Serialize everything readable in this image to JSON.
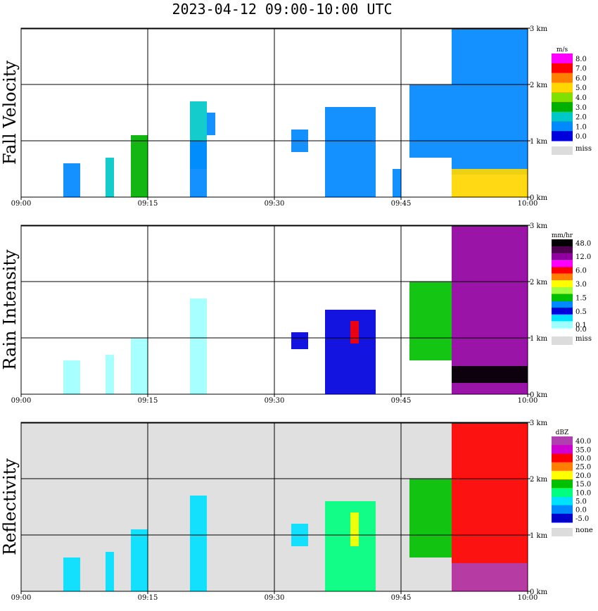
{
  "title": "2023-04-12   09:00-10:00 UTC",
  "time_ticks": [
    "09:00",
    "09:15",
    "09:30",
    "09:45",
    "10:00"
  ],
  "height_ticks": [
    "0 km",
    "1 km",
    "2 km",
    "3 km"
  ],
  "panels": [
    {
      "id": "fall",
      "title": "Fall Velocity",
      "units": "m/s",
      "background": "#ffffff",
      "legend": [
        {
          "label": "8.0",
          "color": "#ff00ff"
        },
        {
          "label": "7.0",
          "color": "#ff0000"
        },
        {
          "label": "6.0",
          "color": "#ff7f00"
        },
        {
          "label": "5.0",
          "color": "#ffd700"
        },
        {
          "label": "4.0",
          "color": "#80e000"
        },
        {
          "label": "3.0",
          "color": "#00b000"
        },
        {
          "label": "2.0",
          "color": "#00c8c8"
        },
        {
          "label": "1.0",
          "color": "#0088ff"
        },
        {
          "label": "0.0",
          "color": "#0000dd"
        }
      ],
      "legend_extra": "",
      "miss_label": "miss"
    },
    {
      "id": "rain",
      "title": "Rain Intensity",
      "units": "mm/hr",
      "background": "#ffffff",
      "legend": [
        {
          "label": "48.0",
          "color": "#000000"
        },
        {
          "label": "",
          "color": "#500050"
        },
        {
          "label": "12.0",
          "color": "#9000a0"
        },
        {
          "label": "",
          "color": "#ff00ff"
        },
        {
          "label": "6.0",
          "color": "#ff0000"
        },
        {
          "label": "",
          "color": "#ff7f00"
        },
        {
          "label": "3.0",
          "color": "#ffff00"
        },
        {
          "label": "",
          "color": "#a0ff40"
        },
        {
          "label": "1.5",
          "color": "#00c000"
        },
        {
          "label": "",
          "color": "#0088ff"
        },
        {
          "label": "0.5",
          "color": "#0000dd"
        },
        {
          "label": "",
          "color": "#00e0ff"
        },
        {
          "label": "0.1",
          "color": "#a0ffff"
        }
      ],
      "legend_extra": "0.0",
      "miss_label": "miss"
    },
    {
      "id": "refl",
      "title": "Reflectivity",
      "units": "dBZ",
      "background": "#e0e0e0",
      "legend": [
        {
          "label": "40.0",
          "color": "#b040b0"
        },
        {
          "label": "35.0",
          "color": "#d000d0"
        },
        {
          "label": "30.0",
          "color": "#ff0000"
        },
        {
          "label": "25.0",
          "color": "#ff7f00"
        },
        {
          "label": "20.0",
          "color": "#ffff00"
        },
        {
          "label": "15.0",
          "color": "#00c000"
        },
        {
          "label": "10.0",
          "color": "#00ff80"
        },
        {
          "label": "5.0",
          "color": "#00e0ff"
        },
        {
          "label": "0.0",
          "color": "#0088ff"
        },
        {
          "label": "-5.0",
          "color": "#0000cc"
        }
      ],
      "legend_extra": "",
      "miss_label": "none"
    }
  ],
  "chart_data": [
    {
      "type": "heatmap",
      "panel": "Fall Velocity",
      "x_label_ticks": [
        "09:00",
        "09:15",
        "09:30",
        "09:45",
        "10:00"
      ],
      "y_label_ticks": [
        "0 km",
        "1 km",
        "2 km",
        "3 km"
      ],
      "xlim": [
        "09:00",
        "10:00"
      ],
      "ylim_km": [
        0,
        3
      ],
      "units": "m/s",
      "grid": true,
      "echoes": [
        {
          "t": [
            "09:05",
            "09:07"
          ],
          "km": [
            0.0,
            0.6
          ],
          "level": 1.0
        },
        {
          "t": [
            "09:10",
            "09:11"
          ],
          "km": [
            0.0,
            0.7
          ],
          "level": 2.0
        },
        {
          "t": [
            "09:13",
            "09:15"
          ],
          "km": [
            0.0,
            1.1
          ],
          "level": 3.0
        },
        {
          "t": [
            "09:20",
            "09:22"
          ],
          "km": [
            0.5,
            1.7
          ],
          "level": 2.0
        },
        {
          "t": [
            "09:22",
            "09:23"
          ],
          "km": [
            1.1,
            1.5
          ],
          "level": 1.0
        },
        {
          "t": [
            "09:20",
            "09:22"
          ],
          "km": [
            0.0,
            1.0
          ],
          "level": 1.0
        },
        {
          "t": [
            "09:32",
            "09:34"
          ],
          "km": [
            0.8,
            1.2
          ],
          "level": 1.0
        },
        {
          "t": [
            "09:36",
            "09:42"
          ],
          "km": [
            0.0,
            1.6
          ],
          "level": 1.0
        },
        {
          "t": [
            "09:44",
            "09:45"
          ],
          "km": [
            0.0,
            0.5
          ],
          "level": 1.0
        },
        {
          "t": [
            "09:46",
            "09:51"
          ],
          "km": [
            0.7,
            2.0
          ],
          "level": 1.0
        },
        {
          "t": [
            "09:51",
            "10:00"
          ],
          "km": [
            0.4,
            3.0
          ],
          "level": 1.0
        },
        {
          "t": [
            "09:51",
            "10:00"
          ],
          "km": [
            0.0,
            0.5
          ],
          "level": 5.0
        }
      ]
    },
    {
      "type": "heatmap",
      "panel": "Rain Intensity",
      "x_label_ticks": [
        "09:00",
        "09:15",
        "09:30",
        "09:45",
        "10:00"
      ],
      "y_label_ticks": [
        "0 km",
        "1 km",
        "2 km",
        "3 km"
      ],
      "xlim": [
        "09:00",
        "10:00"
      ],
      "ylim_km": [
        0,
        3
      ],
      "units": "mm/hr",
      "grid": true,
      "echoes": [
        {
          "t": [
            "09:05",
            "09:07"
          ],
          "km": [
            0.0,
            0.6
          ],
          "level": 0.1
        },
        {
          "t": [
            "09:10",
            "09:11"
          ],
          "km": [
            0.0,
            0.7
          ],
          "level": 0.1
        },
        {
          "t": [
            "09:13",
            "09:15"
          ],
          "km": [
            0.0,
            1.0
          ],
          "level": 0.1
        },
        {
          "t": [
            "09:20",
            "09:22"
          ],
          "km": [
            0.0,
            1.7
          ],
          "level": 0.1
        },
        {
          "t": [
            "09:32",
            "09:34"
          ],
          "km": [
            0.8,
            1.1
          ],
          "level": 0.5
        },
        {
          "t": [
            "09:36",
            "09:42"
          ],
          "km": [
            0.0,
            1.5
          ],
          "level": 0.5
        },
        {
          "t": [
            "09:39",
            "09:40"
          ],
          "km": [
            0.9,
            1.3
          ],
          "level": 6.0
        },
        {
          "t": [
            "09:46",
            "09:51"
          ],
          "km": [
            0.6,
            2.0
          ],
          "level": 1.5
        },
        {
          "t": [
            "09:51",
            "10:00"
          ],
          "km": [
            0.0,
            3.0
          ],
          "level": 12.0
        },
        {
          "t": [
            "09:51",
            "10:00"
          ],
          "km": [
            0.2,
            0.5
          ],
          "level": 48.0
        }
      ]
    },
    {
      "type": "heatmap",
      "panel": "Reflectivity",
      "x_label_ticks": [
        "09:00",
        "09:15",
        "09:30",
        "09:45",
        "10:00"
      ],
      "y_label_ticks": [
        "0 km",
        "1 km",
        "2 km",
        "3 km"
      ],
      "xlim": [
        "09:00",
        "10:00"
      ],
      "ylim_km": [
        0,
        3
      ],
      "units": "dBZ",
      "grid": true,
      "echoes": [
        {
          "t": [
            "09:05",
            "09:07"
          ],
          "km": [
            0.0,
            0.6
          ],
          "level": 5.0
        },
        {
          "t": [
            "09:10",
            "09:11"
          ],
          "km": [
            0.0,
            0.7
          ],
          "level": 5.0
        },
        {
          "t": [
            "09:13",
            "09:15"
          ],
          "km": [
            0.0,
            1.1
          ],
          "level": 5.0
        },
        {
          "t": [
            "09:20",
            "09:22"
          ],
          "km": [
            0.0,
            1.7
          ],
          "level": 5.0
        },
        {
          "t": [
            "09:32",
            "09:34"
          ],
          "km": [
            0.8,
            1.2
          ],
          "level": 5.0
        },
        {
          "t": [
            "09:36",
            "09:42"
          ],
          "km": [
            0.0,
            1.6
          ],
          "level": 10.0
        },
        {
          "t": [
            "09:39",
            "09:40"
          ],
          "km": [
            0.8,
            1.4
          ],
          "level": 20.0
        },
        {
          "t": [
            "09:46",
            "09:51"
          ],
          "km": [
            0.6,
            2.0
          ],
          "level": 15.0
        },
        {
          "t": [
            "09:51",
            "10:00"
          ],
          "km": [
            0.0,
            3.0
          ],
          "level": 30.0
        },
        {
          "t": [
            "09:51",
            "10:00"
          ],
          "km": [
            0.0,
            0.5
          ],
          "level": 40.0
        }
      ]
    }
  ]
}
